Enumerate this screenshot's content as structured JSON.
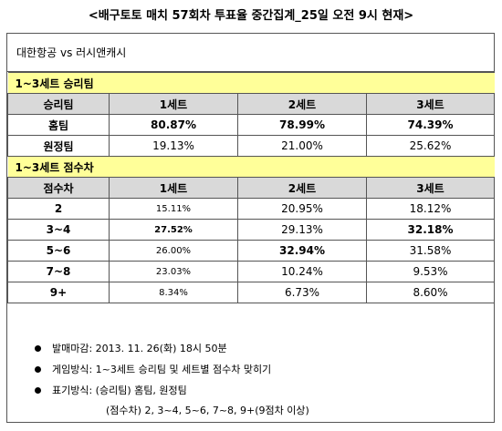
{
  "title": "<배구토토 매치 57회차 투표율 중간집계_25일 오전 9시 현재>",
  "match": "대한항공 vs 러시앤캐시",
  "section1": {
    "title": "1~3세트 승리팀",
    "headers": [
      "승리팀",
      "1세트",
      "2세트",
      "3세트"
    ],
    "rows": [
      {
        "label": "홈팀",
        "values": [
          "80.87%",
          "78.99%",
          "74.39%"
        ]
      },
      {
        "label": "원정팀",
        "values": [
          "19.13%",
          "21.00%",
          "25.62%"
        ]
      }
    ]
  },
  "section2": {
    "title": "1~3세트 점수차",
    "headers": [
      "점수차",
      "1세트",
      "2세트",
      "3세트"
    ],
    "rows": [
      {
        "label": "2",
        "values": [
          "15.11%",
          "20.95%",
          "18.12%"
        ]
      },
      {
        "label": "3~4",
        "values": [
          "27.52%",
          "29.13%",
          "32.18%"
        ]
      },
      {
        "label": "5~6",
        "values": [
          "26.00%",
          "32.94%",
          "31.58%"
        ]
      },
      {
        "label": "7~8",
        "values": [
          "23.03%",
          "10.24%",
          "9.53%"
        ]
      },
      {
        "label": "9+",
        "values": [
          "8.34%",
          "6.73%",
          "8.60%"
        ]
      }
    ]
  },
  "notes": [
    "발매마감: 2013. 11. 26(화) 18시 50분",
    "게임방식: 1~3세트 승리팀 및 세트별 점수차 맞히기",
    "표기방식: (승리팀) 홈팀, 원정팀",
    "(점수차) 2, 3~4, 5~6, 7~8, 9+(9점차 이상)"
  ]
}
